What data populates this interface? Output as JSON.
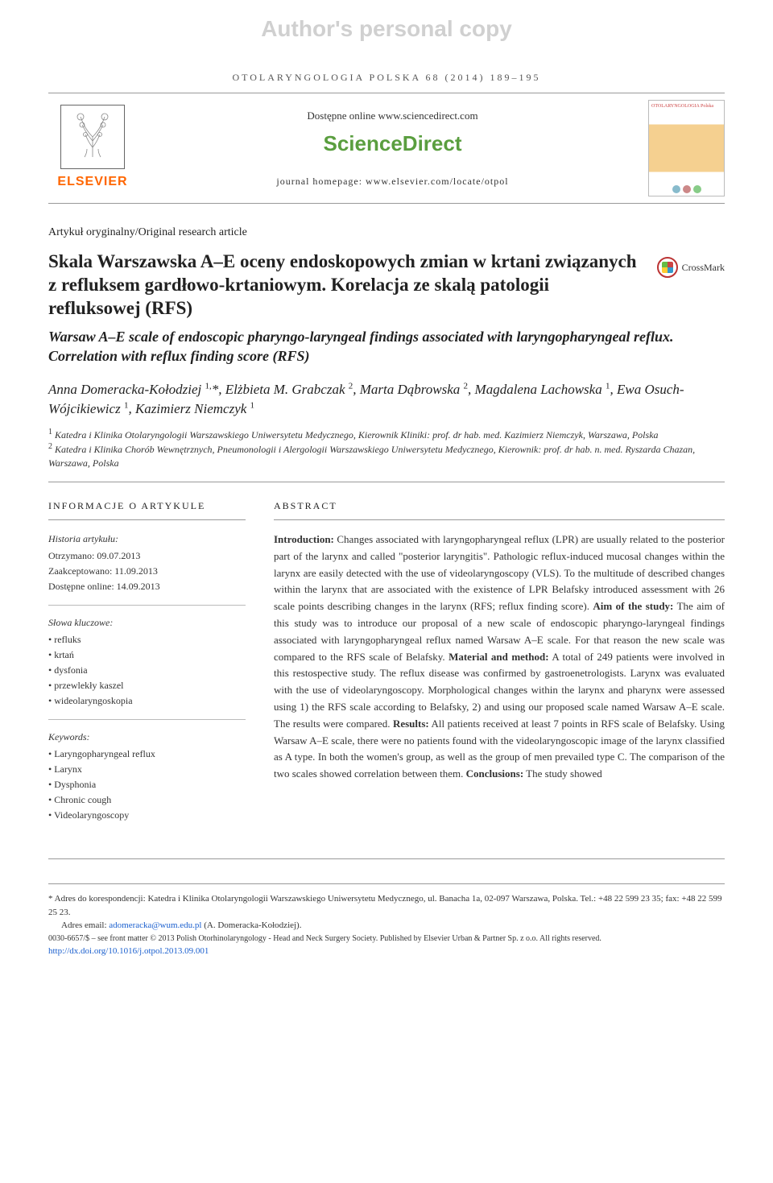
{
  "watermark": "Author's personal copy",
  "journal_ref": "OTOLARYNGOLOGIA POLSKA 68 (2014) 189–195",
  "header": {
    "available_at": "Dostępne online www.sciencedirect.com",
    "sciencedirect": "ScienceDirect",
    "homepage": "journal homepage: www.elsevier.com/locate/otpol",
    "elsevier": "ELSEVIER",
    "cover_title": "OTOLARYNGOLOGIA Polska",
    "crossmark": "CrossMark"
  },
  "article_type": "Artykuł oryginalny/Original research article",
  "title_pl": "Skala Warszawska A–E oceny endoskopowych zmian w krtani związanych z refluksem gardłowo-krtaniowym. Korelacja ze skalą patologii refluksowej (RFS)",
  "title_en": "Warsaw A–E scale of endoscopic pharyngo-laryngeal findings associated with laryngopharyngeal reflux. Correlation with reflux finding score (RFS)",
  "authors_html": "Anna Domeracka-Kołodziej <sup>1,</sup>*, Elżbieta M. Grabczak <sup>2</sup>, Marta Dąbrowska <sup>2</sup>, Magdalena Lachowska <sup>1</sup>, Ewa Osuch-Wójcikiewicz <sup>1</sup>, Kazimierz Niemczyk <sup>1</sup>",
  "affiliations": {
    "a1": "Katedra i Klinika Otolaryngologii Warszawskiego Uniwersytetu Medycznego, Kierownik Kliniki: prof. dr hab. med. Kazimierz Niemczyk, Warszawa, Polska",
    "a2": "Katedra i Klinika Chorób Wewnętrznych, Pneumonologii i Alergologii Warszawskiego Uniwersytetu Medycznego, Kierownik: prof. dr hab. n. med. Ryszarda Chazan, Warszawa, Polska"
  },
  "info": {
    "heading": "INFORMACJE O ARTYKULE",
    "history_label": "Historia artykułu:",
    "received": "Otrzymano: 09.07.2013",
    "accepted": "Zaakceptowano: 11.09.2013",
    "online": "Dostępne online: 14.09.2013",
    "kw_pl_label": "Słowa kluczowe:",
    "kw_pl": [
      "refluks",
      "krtań",
      "dysfonia",
      "przewlekły kaszel",
      "wideolaryngoskopia"
    ],
    "kw_en_label": "Keywords:",
    "kw_en": [
      "Laryngopharyngeal reflux",
      "Larynx",
      "Dysphonia",
      "Chronic cough",
      "Videolaryngoscopy"
    ]
  },
  "abstract": {
    "heading": "ABSTRACT",
    "intro_b": "Introduction:",
    "intro": " Changes associated with laryngopharyngeal reflux (LPR) are usually related to the posterior part of the larynx and called \"posterior laryngitis\". Pathologic reflux-induced mucosal changes within the larynx are easily detected with the use of videolaryngoscopy (VLS). To the multitude of described changes within the larynx that are associated with the existence of LPR Belafsky introduced assessment with 26 scale points describing changes in the larynx (RFS; reflux finding score). ",
    "aim_b": "Aim of the study:",
    "aim": " The aim of this study was to introduce our proposal of a new scale of endoscopic pharyngo-laryngeal findings associated with laryngopharyngeal reflux named Warsaw A–E scale. For that reason the new scale was compared to the RFS scale of Belafsky. ",
    "mat_b": "Material and method:",
    "mat": " A total of 249 patients were involved in this restospective study. The reflux disease was confirmed by gastroenetrologists. Larynx was evaluated with the use of videolaryngoscopy. Morphological changes within the larynx and pharynx were assessed using 1) the RFS scale according to Belafsky, 2) and using our proposed scale named Warsaw A–E scale. The results were compared. ",
    "res_b": "Results:",
    "res": " All patients received at least 7 points in RFS scale of Belafsky. Using Warsaw A–E scale, there were no patients found with the videolaryngoscopic image of the larynx classified as A type. In both the women's group, as well as the group of men prevailed type C. The comparison of the two scales showed correlation between them. ",
    "con_b": "Conclusions:",
    "con": " The study showed"
  },
  "footer": {
    "corr_label": "* Adres do korespondencji: ",
    "corr": "Katedra i Klinika Otolaryngologii Warszawskiego Uniwersytetu Medycznego, ul. Banacha 1a, 02-097 Warszawa, Polska. Tel.: +48 22 599 23 35; fax: +48 22 599 25 23.",
    "email_label": "Adres email: ",
    "email": "adomeracka@wum.edu.pl",
    "email_suffix": " (A. Domeracka-Kołodziej).",
    "copyright": "0030-6657/$ – see front matter © 2013 Polish Otorhinolaryngology - Head and Neck Surgery Society. Published by Elsevier Urban & Partner Sp. z o.o. All rights reserved.",
    "doi": "http://dx.doi.org/10.1016/j.otpol.2013.09.001"
  },
  "colors": {
    "elsevier_orange": "#ff6600",
    "sd_green": "#5a9e3f",
    "link_blue": "#1a5fce",
    "border_gray": "#999999"
  }
}
